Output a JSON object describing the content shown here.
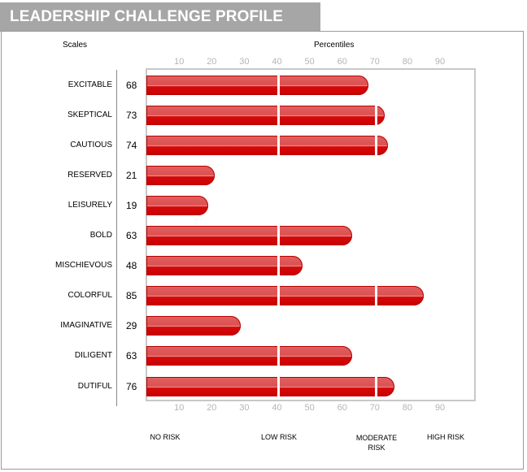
{
  "header": {
    "title": "LEADERSHIP CHALLENGE PROFILE"
  },
  "columns": {
    "scales": "Scales",
    "percentiles": "Percentiles"
  },
  "chart_data": {
    "type": "bar",
    "orientation": "horizontal",
    "categories": [
      "EXCITABLE",
      "SKEPTICAL",
      "CAUTIOUS",
      "RESERVED",
      "LEISURELY",
      "BOLD",
      "MISCHIEVOUS",
      "COLORFUL",
      "IMAGINATIVE",
      "DILIGENT",
      "DUTIFUL"
    ],
    "values": [
      68,
      73,
      74,
      21,
      19,
      63,
      48,
      85,
      29,
      63,
      76
    ],
    "xlabel": "Percentiles",
    "ylabel": "Scales",
    "xlim": [
      0,
      100
    ],
    "xticks": [
      "10",
      "20",
      "30",
      "40",
      "50",
      "60",
      "70",
      "80",
      "90"
    ],
    "bar_color": "#cc0000",
    "grid": false,
    "risk_labels": [
      "NO RISK",
      "LOW RISK",
      "MODERATE RISK",
      "HIGH RISK"
    ],
    "risk_thresholds": [
      40,
      70
    ]
  }
}
